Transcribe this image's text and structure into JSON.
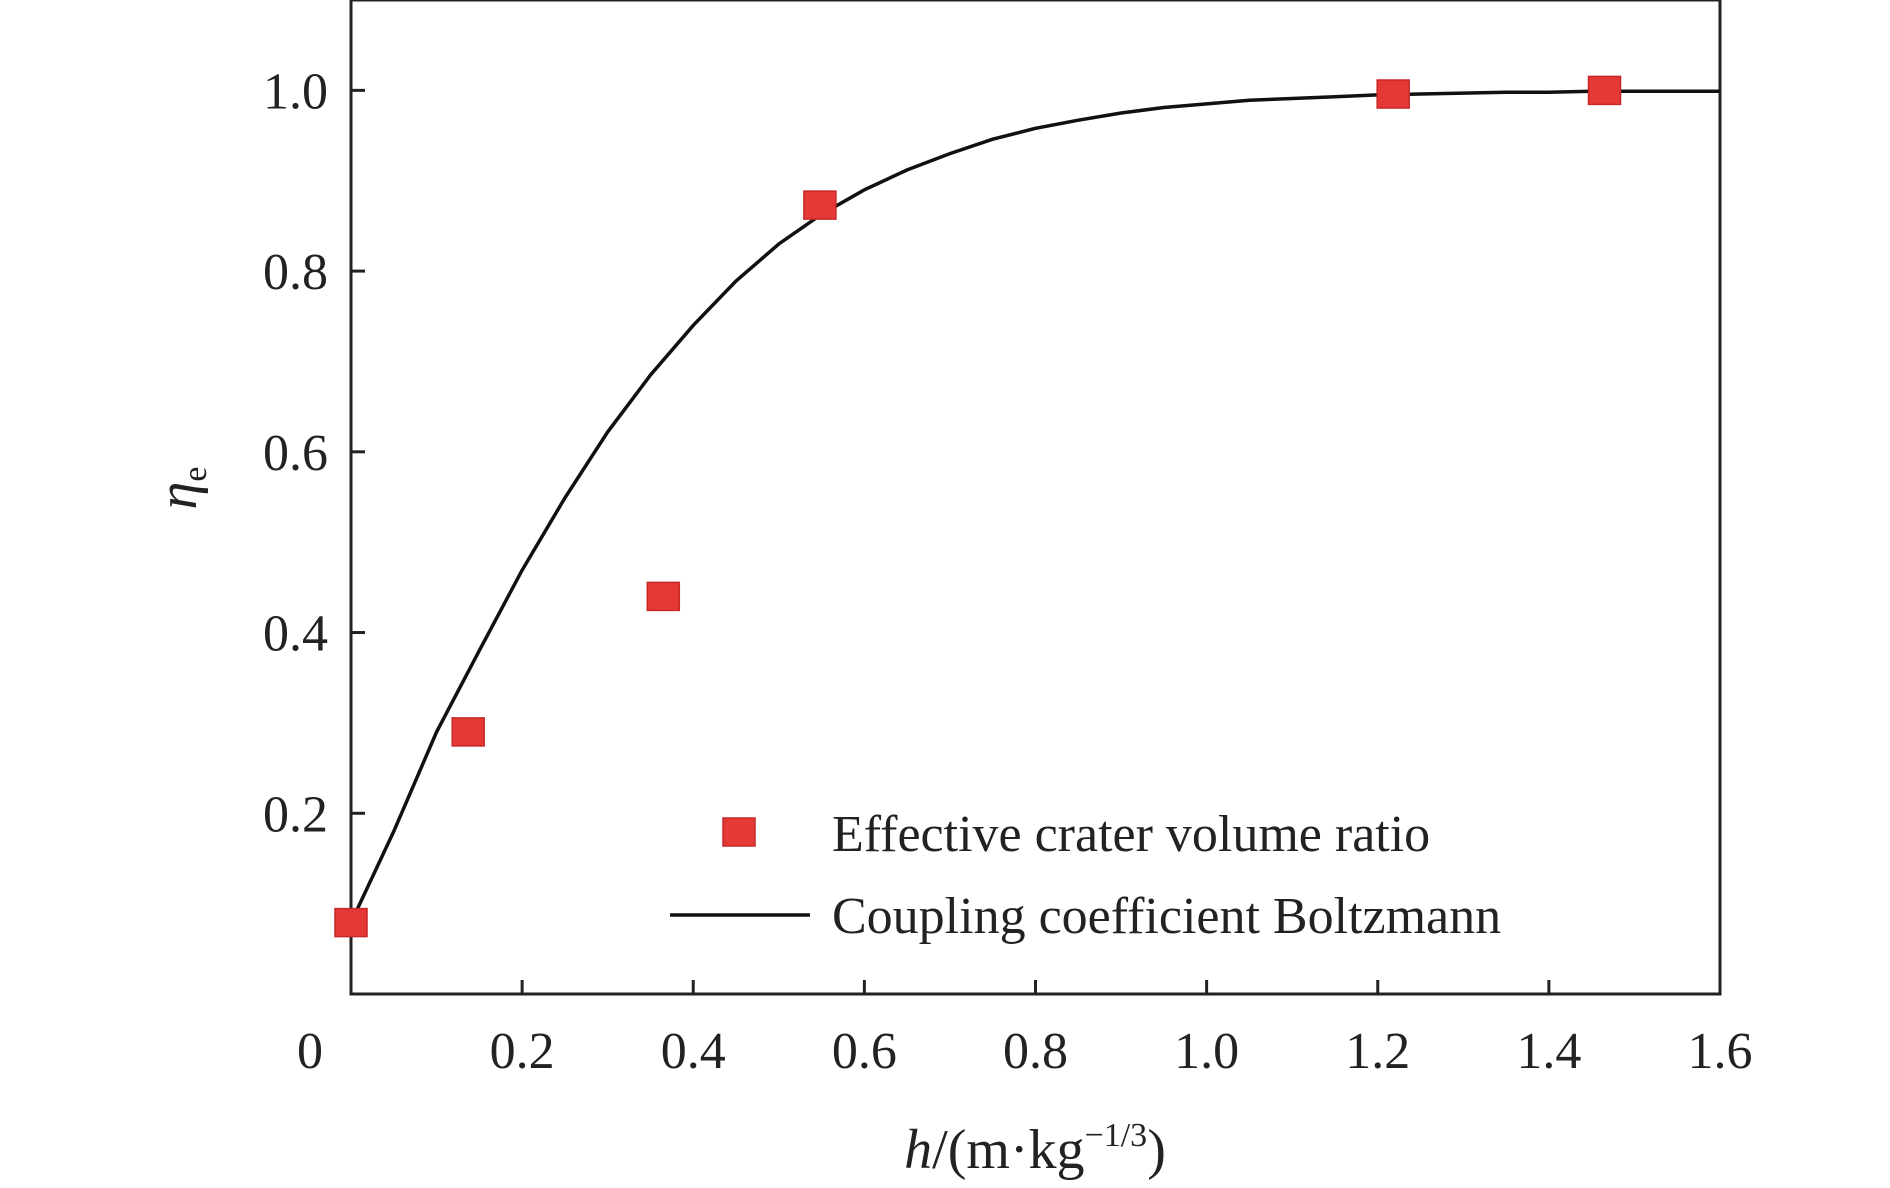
{
  "chart_data": {
    "type": "scatter",
    "title": "",
    "xlabel": {
      "var": "h",
      "unit_open": "/(m·kg",
      "unit_exp": "−1/3",
      "unit_close": ")"
    },
    "ylabel": {
      "var": "η",
      "sub": "e"
    },
    "xlim": [
      0,
      1.6
    ],
    "ylim": [
      0,
      1.1
    ],
    "x_ticks": [
      0,
      0.2,
      0.4,
      0.6,
      0.8,
      1.0,
      1.2,
      1.4,
      1.6
    ],
    "x_tick_labels": [
      "0",
      "0.2",
      "0.4",
      "0.6",
      "0.8",
      "1.0",
      "1.2",
      "1.4",
      "1.6"
    ],
    "y_ticks": [
      0.2,
      0.4,
      0.6,
      0.8,
      1.0
    ],
    "y_tick_labels": [
      "0.2",
      "0.4",
      "0.6",
      "0.8",
      "1.0"
    ],
    "grid": false,
    "legend": "bottom-right",
    "series": [
      {
        "name": "Effective crater volume ratio",
        "kind": "scatter",
        "marker": "square",
        "color": "#e53935",
        "x": [
          0.0,
          0.137,
          0.365,
          0.548,
          1.218,
          1.465
        ],
        "y": [
          0.079,
          0.29,
          0.44,
          0.873,
          0.996,
          1.0
        ]
      },
      {
        "name": "Coupling coefficient Boltzmann",
        "kind": "line",
        "color": "#111111",
        "x": [
          0.0,
          0.05,
          0.1,
          0.15,
          0.2,
          0.25,
          0.3,
          0.35,
          0.4,
          0.45,
          0.5,
          0.55,
          0.6,
          0.65,
          0.7,
          0.75,
          0.8,
          0.85,
          0.9,
          0.95,
          1.0,
          1.05,
          1.1,
          1.15,
          1.2,
          1.25,
          1.3,
          1.35,
          1.4,
          1.45,
          1.5,
          1.55,
          1.6
        ],
        "y": [
          0.079,
          0.18,
          0.29,
          0.38,
          0.469,
          0.549,
          0.622,
          0.685,
          0.74,
          0.789,
          0.83,
          0.863,
          0.89,
          0.912,
          0.93,
          0.946,
          0.958,
          0.967,
          0.975,
          0.981,
          0.985,
          0.989,
          0.991,
          0.993,
          0.995,
          0.996,
          0.997,
          0.998,
          0.998,
          0.999,
          0.999,
          0.999,
          0.999
        ]
      }
    ]
  }
}
